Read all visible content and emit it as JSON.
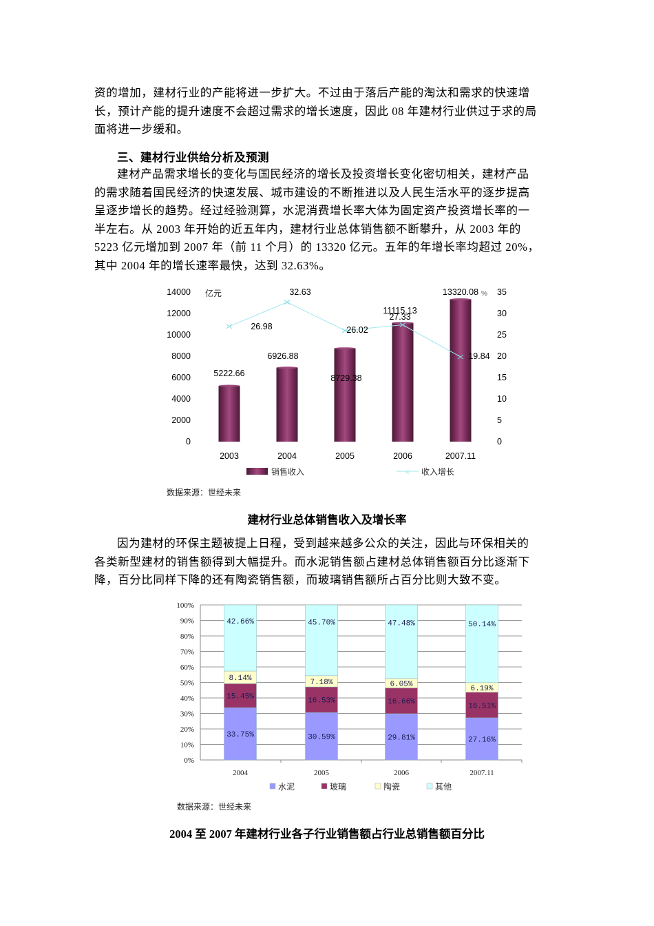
{
  "paragraph_intro": {
    "lines": [
      "资的增加，建材行业的产能将进一步扩大。不过由于落后产能的淘汰和需求的快速增",
      "长，预计产能的提升速度不会超过需求的增长速度，因此 08 年建材行业供过于求的局",
      "面将进一步缓和。"
    ]
  },
  "section_heading": "三、建材行业供给分析及预测",
  "paragraph_supply": {
    "lines": [
      "建材产品需求增长的变化与国民经济的增长及投资增长变化密切相关，建材产品",
      "的需求随着国民经济的快速发展、城市建设的不断推进以及人民生活水平的逐步提高",
      "呈逐步增长的趋势。经过经验测算，水泥消费增长率大体为固定资产投资增长率的一",
      "半左右。从 2003 年开始的近五年内，建材行业总体销售额不断攀升，从 2003 年的",
      "5223 亿元增加到 2007 年（前 11 个月）的 13320 亿元。五年的年增长率均超过 20%，",
      "其中 2004 年的增长速率最快，达到 32.63%。"
    ]
  },
  "chart1": {
    "left_unit": "亿元",
    "right_unit": "%",
    "source": "数据来源：世经未来",
    "caption": "建材行业总体销售收入及增长率"
  },
  "paragraph_env": {
    "lines": [
      "因为建材的环保主题被提上日程，受到越来越多公众的关注，因此与环保相关的",
      "各类新型建材的销售额得到大幅提升。而水泥销售额占建材总体销售额百分比逐渐下",
      "降，百分比同样下降的还有陶瓷销售额，而玻璃销售额所占百分比则大致不变。"
    ]
  },
  "chart2": {
    "source": "数据来源：世经未来",
    "caption": "2004 至 2007 年建材行业各子行业销售额占行业总销售额百分比"
  },
  "chart_data": [
    {
      "type": "bar",
      "title": "建材行业总体销售收入及增长率",
      "categories": [
        "2003",
        "2004",
        "2005",
        "2006",
        "2007.11"
      ],
      "series": [
        {
          "name": "销售收入",
          "type": "bar",
          "axis": "left",
          "values": [
            5222.66,
            6926.88,
            8729.38,
            11115.13,
            13320.08
          ],
          "color": "#8b2f63"
        },
        {
          "name": "收入增长",
          "type": "line",
          "axis": "right",
          "values": [
            26.98,
            32.63,
            26.02,
            27.33,
            19.84
          ],
          "color": "#9ee8ee"
        }
      ],
      "ylabel": "亿元",
      "ylabel_right": "%",
      "ylim": [
        0,
        14000
      ],
      "yticks": [
        0,
        2000,
        4000,
        6000,
        8000,
        10000,
        12000,
        14000
      ],
      "ylim_right": [
        0,
        35
      ],
      "yticks_right": [
        0,
        5,
        10,
        15,
        20,
        25,
        30,
        35
      ],
      "grid": false,
      "legend": [
        "销售收入",
        "收入增长"
      ],
      "legend_position": "bottom"
    },
    {
      "type": "bar",
      "stacked": true,
      "title": "2004 至 2007 年建材行业各子行业销售额占行业总销售额百分比",
      "categories": [
        "2004",
        "2005",
        "2006",
        "2007.11"
      ],
      "series": [
        {
          "name": "水泥",
          "values": [
            33.75,
            30.59,
            29.81,
            27.16
          ],
          "color": "#9999ff"
        },
        {
          "name": "玻璃",
          "values": [
            15.45,
            16.53,
            16.66,
            16.51
          ],
          "color": "#993366"
        },
        {
          "name": "陶瓷",
          "values": [
            8.14,
            7.18,
            6.05,
            6.19
          ],
          "color": "#ffffcc"
        },
        {
          "name": "其他",
          "values": [
            42.66,
            45.7,
            47.48,
            50.14
          ],
          "color": "#ccffff"
        }
      ],
      "labels": [
        [
          "33.75%",
          "15.45%",
          "8.14%",
          "42.66%"
        ],
        [
          "30.59%",
          "16.53%",
          "7.18%",
          "45.70%"
        ],
        [
          "29.81%",
          "16.66%",
          "6.05%",
          "47.48%"
        ],
        [
          "27.16%",
          "16.51%",
          "6.19%",
          "50.14%"
        ]
      ],
      "ylim": [
        0,
        100
      ],
      "yticks": [
        "0%",
        "10%",
        "20%",
        "30%",
        "40%",
        "50%",
        "60%",
        "70%",
        "80%",
        "90%",
        "100%"
      ],
      "grid": true,
      "legend": [
        "水泥",
        "玻璃",
        "陶瓷",
        "其他"
      ],
      "legend_position": "bottom"
    }
  ]
}
